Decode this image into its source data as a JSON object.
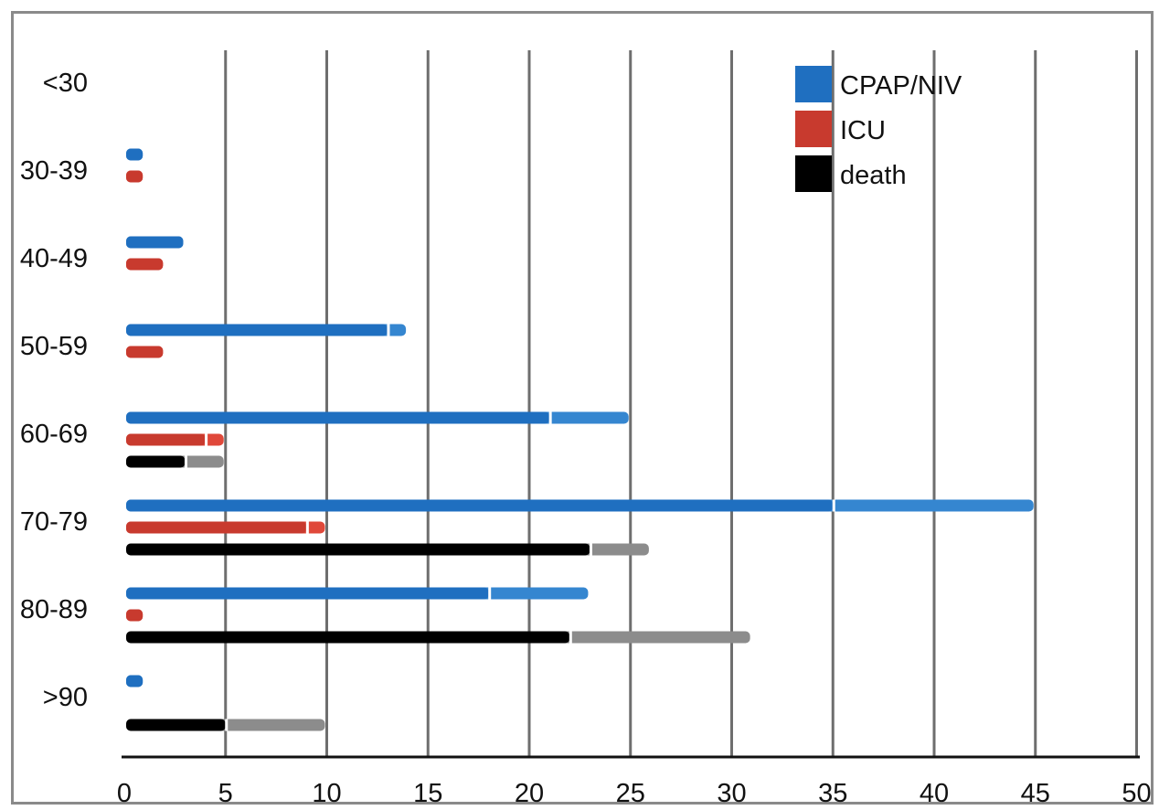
{
  "chart_data": {
    "type": "bar",
    "orientation": "horizontal",
    "stacked_segments": true,
    "categories": [
      "<30",
      "30-39",
      "40-49",
      "50-59",
      "60-69",
      "70-79",
      "80-89",
      ">90"
    ],
    "xlim": [
      0,
      50
    ],
    "xticks": [
      0,
      5,
      10,
      15,
      20,
      25,
      30,
      35,
      40,
      45,
      50
    ],
    "grid": "vertical",
    "legend_position": "top-right",
    "series": [
      {
        "name": "CPAP/NIV",
        "color": "#1f6fc0",
        "extension_color": "#3586d0",
        "values": [
          0,
          1,
          3,
          13,
          21,
          35,
          18,
          1
        ],
        "totals": [
          0,
          1,
          3,
          14,
          25,
          45,
          23,
          1
        ]
      },
      {
        "name": "ICU",
        "color": "#c83a2e",
        "extension_color": "#e0483a",
        "values": [
          0,
          1,
          2,
          2,
          4,
          9,
          1,
          0
        ],
        "totals": [
          0,
          1,
          2,
          2,
          5,
          10,
          1,
          0
        ]
      },
      {
        "name": "death",
        "color": "#000000",
        "extension_color": "#8c8c8c",
        "values": [
          0,
          0,
          0,
          0,
          3,
          23,
          22,
          5
        ],
        "totals": [
          0,
          0,
          0,
          0,
          5,
          26,
          31,
          10
        ]
      }
    ]
  }
}
